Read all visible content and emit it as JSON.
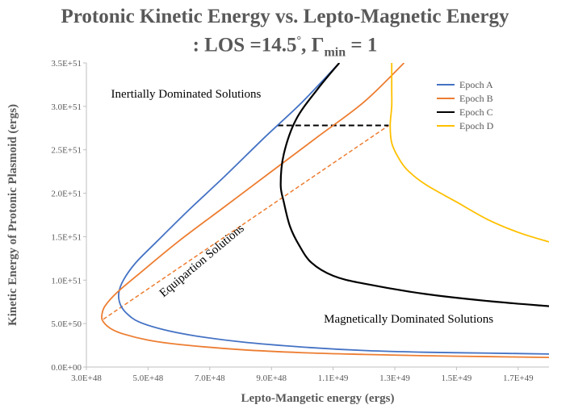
{
  "chart_data": {
    "type": "line",
    "title_line1": "Protonic Kinetic Energy vs. Lepto-Magnetic Energy",
    "title_line2_prefix": ": LOS =14.5",
    "title_line2_deg": "°",
    "title_line2_gamma": ", Γ",
    "title_line2_sub": "min",
    "title_line2_suffix": " = 1",
    "xlabel": "Lepto-Mangetic energy (ergs)",
    "ylabel": "Kinetic Energy of Protonic Plasmoid (ergs)",
    "xlim": [
      3e+48,
      1.8e+49
    ],
    "ylim": [
      0,
      3.5e+51
    ],
    "x_ticks": [
      {
        "v": 3e+48,
        "label": "3.0E+48"
      },
      {
        "v": 5e+48,
        "label": "5.0E+48"
      },
      {
        "v": 7e+48,
        "label": "7.0E+48"
      },
      {
        "v": 9e+48,
        "label": "9.0E+48"
      },
      {
        "v": 1.1e+49,
        "label": "1.1E+49"
      },
      {
        "v": 1.3e+49,
        "label": "1.3E+49"
      },
      {
        "v": 1.5e+49,
        "label": "1.5E+49"
      },
      {
        "v": 1.7e+49,
        "label": "1.7E+49"
      }
    ],
    "y_ticks": [
      {
        "v": 0,
        "label": "0.0E+00"
      },
      {
        "v": 5e+50,
        "label": "5.0E+50"
      },
      {
        "v": 1e+51,
        "label": "1.0E+51"
      },
      {
        "v": 1.5e+51,
        "label": "1.5E+51"
      },
      {
        "v": 2e+51,
        "label": "2.0E+51"
      },
      {
        "v": 2.5e+51,
        "label": "2.5E+51"
      },
      {
        "v": 3e+51,
        "label": "3.0E+51"
      },
      {
        "v": 3.5e+51,
        "label": "3.5E+51"
      }
    ],
    "grid": false,
    "legend_position": "top-right",
    "series": [
      {
        "name": "Epoch A",
        "color": "#4472C4",
        "points": [
          [
            1.8e+49,
            1.5e+50
          ],
          [
            1.6e+49,
            1.6e+50
          ],
          [
            1.4e+49,
            1.7e+50
          ],
          [
            1.2e+49,
            1.9e+50
          ],
          [
            1e+49,
            2.3e+50
          ],
          [
            8e+48,
            2.9e+50
          ],
          [
            6.5e+48,
            3.6e+50
          ],
          [
            5.5e+48,
            4.3e+50
          ],
          [
            4.7e+48,
            5.2e+50
          ],
          [
            4.3e+48,
            6.2e+50
          ],
          [
            4.1e+48,
            7.2e+50
          ],
          [
            4.05e+48,
            8.5e+50
          ],
          [
            4.2e+48,
            1e+51
          ],
          [
            4.6e+48,
            1.2e+51
          ],
          [
            5.3e+48,
            1.45e+51
          ],
          [
            6.3e+48,
            1.8e+51
          ],
          [
            7.5e+48,
            2.2e+51
          ],
          [
            8.8e+48,
            2.65e+51
          ],
          [
            1e+49,
            3.05e+51
          ],
          [
            1.12e+49,
            3.5e+51
          ]
        ]
      },
      {
        "name": "Epoch B",
        "color": "#ED7D31",
        "points": [
          [
            1.8e+49,
            1.1e+50
          ],
          [
            1.6e+49,
            1.2e+50
          ],
          [
            1.4e+49,
            1.3e+50
          ],
          [
            1.2e+49,
            1.45e+50
          ],
          [
            1e+49,
            1.65e+50
          ],
          [
            8e+48,
            2e+50
          ],
          [
            6e+48,
            2.6e+50
          ],
          [
            5e+48,
            3.1e+50
          ],
          [
            4.2e+48,
            3.8e+50
          ],
          [
            3.8e+48,
            4.4e+50
          ],
          [
            3.55e+48,
            5.2e+50
          ],
          [
            3.5e+48,
            5.9e+50
          ],
          [
            3.6e+48,
            7e+50
          ],
          [
            4e+48,
            8.6e+50
          ],
          [
            4.8e+48,
            1.1e+51
          ],
          [
            6e+48,
            1.45e+51
          ],
          [
            7.5e+48,
            1.85e+51
          ],
          [
            9e+48,
            2.25e+51
          ],
          [
            1.05e+49,
            2.65e+51
          ],
          [
            1.2e+49,
            3.05e+51
          ],
          [
            1.33e+49,
            3.5e+51
          ]
        ]
      },
      {
        "name": "Epoch C",
        "color": "#000000",
        "points": [
          [
            1.8e+49,
            7e+50
          ],
          [
            1.6e+49,
            7.6e+50
          ],
          [
            1.4e+49,
            8.4e+50
          ],
          [
            1.2e+49,
            9.6e+50
          ],
          [
            1.1e+49,
            1.05e+51
          ],
          [
            1.03e+49,
            1.2e+51
          ],
          [
            9.9e+48,
            1.4e+51
          ],
          [
            9.6e+48,
            1.62e+51
          ],
          [
            9.4e+48,
            1.9e+51
          ],
          [
            9.3e+48,
            2.1e+51
          ],
          [
            9.4e+48,
            2.45e+51
          ],
          [
            9.8e+48,
            2.85e+51
          ],
          [
            1.05e+49,
            3.2e+51
          ],
          [
            1.12e+49,
            3.5e+51
          ]
        ]
      },
      {
        "name": "Epoch D",
        "color": "#FFC000",
        "points": [
          [
            1.8e+49,
            1.44e+51
          ],
          [
            1.7e+49,
            1.55e+51
          ],
          [
            1.6e+49,
            1.7e+51
          ],
          [
            1.5e+49,
            1.9e+51
          ],
          [
            1.4e+49,
            2.1e+51
          ],
          [
            1.34e+49,
            2.27e+51
          ],
          [
            1.31e+49,
            2.42e+51
          ],
          [
            1.29e+49,
            2.58e+51
          ],
          [
            1.285e+49,
            2.78e+51
          ],
          [
            1.29e+49,
            3e+51
          ],
          [
            1.29e+49,
            3.2e+51
          ],
          [
            1.29e+49,
            3.5e+51
          ]
        ]
      }
    ],
    "overlays": [
      {
        "name": "equipartition-line",
        "color": "#ED7D31",
        "dash": "dashed",
        "points": [
          [
            3.55e+48,
            5.5e+50
          ],
          [
            1.28e+49,
            2.78e+51
          ]
        ]
      },
      {
        "name": "epoch-c-to-d-line",
        "color": "#000000",
        "dash": "dashed",
        "points": [
          [
            9.2e+48,
            2.78e+51
          ],
          [
            1.28e+49,
            2.78e+51
          ]
        ]
      }
    ],
    "annotations": [
      {
        "name": "annotation-inertial",
        "text": "Inertially Dominated Solutions",
        "x": 3.8e+48,
        "y": 3.1e+51,
        "rotate": 0
      },
      {
        "name": "annotation-magnetic",
        "text": "Magnetically Dominated Solutions",
        "x": 1.07e+49,
        "y": 5.1e+50,
        "rotate": 0
      },
      {
        "name": "annotation-equipartition",
        "text": "Equipartion Solutions",
        "x": 5.5e+48,
        "y": 8e+50,
        "rotate": -40
      }
    ]
  }
}
